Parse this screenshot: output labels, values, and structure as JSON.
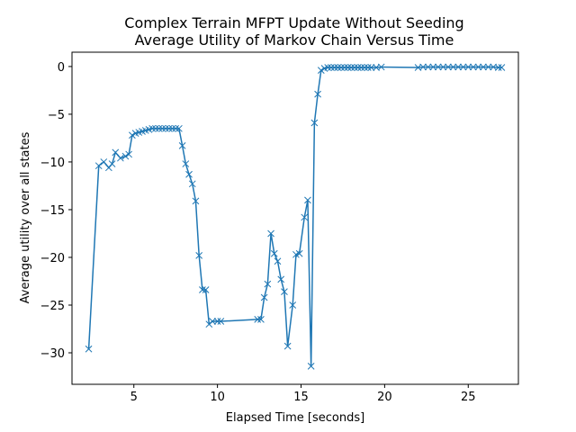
{
  "chart_data": {
    "type": "line",
    "title_lines": [
      "Complex Terrain MFPT Update Without Seeding",
      "Average Utility of Markov Chain Versus Time"
    ],
    "xlabel": "Elapsed Time [seconds]",
    "ylabel": "Average utility over all states",
    "xlim": [
      1.3,
      28.0
    ],
    "ylim": [
      -33.3,
      1.5
    ],
    "xticks": [
      5,
      10,
      15,
      20,
      25
    ],
    "yticks": [
      0,
      -5,
      -10,
      -15,
      -20,
      -25,
      -30
    ],
    "marker": "x",
    "grid": false,
    "legend": "none",
    "colors": {
      "series": "#1f77b4"
    },
    "series": [
      {
        "x": [
          2.3,
          2.9,
          3.2,
          3.5,
          3.7,
          3.9,
          4.2,
          4.5,
          4.7,
          4.9,
          5.1,
          5.3,
          5.5,
          5.7,
          5.9,
          6.1,
          6.3,
          6.5,
          6.7,
          6.9,
          7.1,
          7.3,
          7.5,
          7.7,
          7.9,
          8.1,
          8.3,
          8.5,
          8.7,
          8.9,
          9.1,
          9.3,
          9.5,
          9.7,
          10.0,
          10.2,
          12.4,
          12.6,
          12.8,
          13.0,
          13.2,
          13.4,
          13.6,
          13.8,
          14.0,
          14.2,
          14.5,
          14.7,
          14.9,
          15.2,
          15.4,
          15.6,
          15.8,
          16.0,
          16.2,
          16.4,
          16.6,
          16.8,
          17.0,
          17.2,
          17.4,
          17.6,
          17.8,
          18.0,
          18.2,
          18.4,
          18.6,
          18.8,
          19.0,
          19.2,
          19.5,
          19.8,
          22.0,
          22.3,
          22.6,
          22.9,
          23.2,
          23.5,
          23.8,
          24.1,
          24.4,
          24.7,
          25.0,
          25.3,
          25.6,
          25.9,
          26.2,
          26.5,
          26.8,
          27.0
        ],
        "y": [
          -29.6,
          -10.4,
          -10.0,
          -10.6,
          -10.2,
          -9.0,
          -9.6,
          -9.4,
          -9.2,
          -7.2,
          -7.0,
          -6.9,
          -6.8,
          -6.7,
          -6.6,
          -6.5,
          -6.5,
          -6.5,
          -6.5,
          -6.5,
          -6.5,
          -6.5,
          -6.5,
          -6.5,
          -8.3,
          -10.2,
          -11.3,
          -12.3,
          -14.1,
          -19.8,
          -23.4,
          -23.4,
          -27.0,
          -26.7,
          -26.7,
          -26.7,
          -26.5,
          -26.5,
          -24.2,
          -22.8,
          -17.5,
          -19.6,
          -20.4,
          -22.3,
          -23.6,
          -29.3,
          -25.0,
          -19.7,
          -19.6,
          -15.8,
          -14.0,
          -31.4,
          -5.9,
          -2.9,
          -0.4,
          -0.2,
          -0.1,
          -0.1,
          -0.1,
          -0.1,
          -0.1,
          -0.1,
          -0.1,
          -0.1,
          -0.1,
          -0.1,
          -0.1,
          -0.1,
          -0.1,
          -0.1,
          -0.1,
          -0.05,
          -0.1,
          -0.05,
          -0.05,
          -0.05,
          -0.05,
          -0.05,
          -0.05,
          -0.05,
          -0.05,
          -0.05,
          -0.05,
          -0.05,
          -0.05,
          -0.05,
          -0.05,
          -0.05,
          -0.1,
          -0.1
        ]
      }
    ]
  }
}
